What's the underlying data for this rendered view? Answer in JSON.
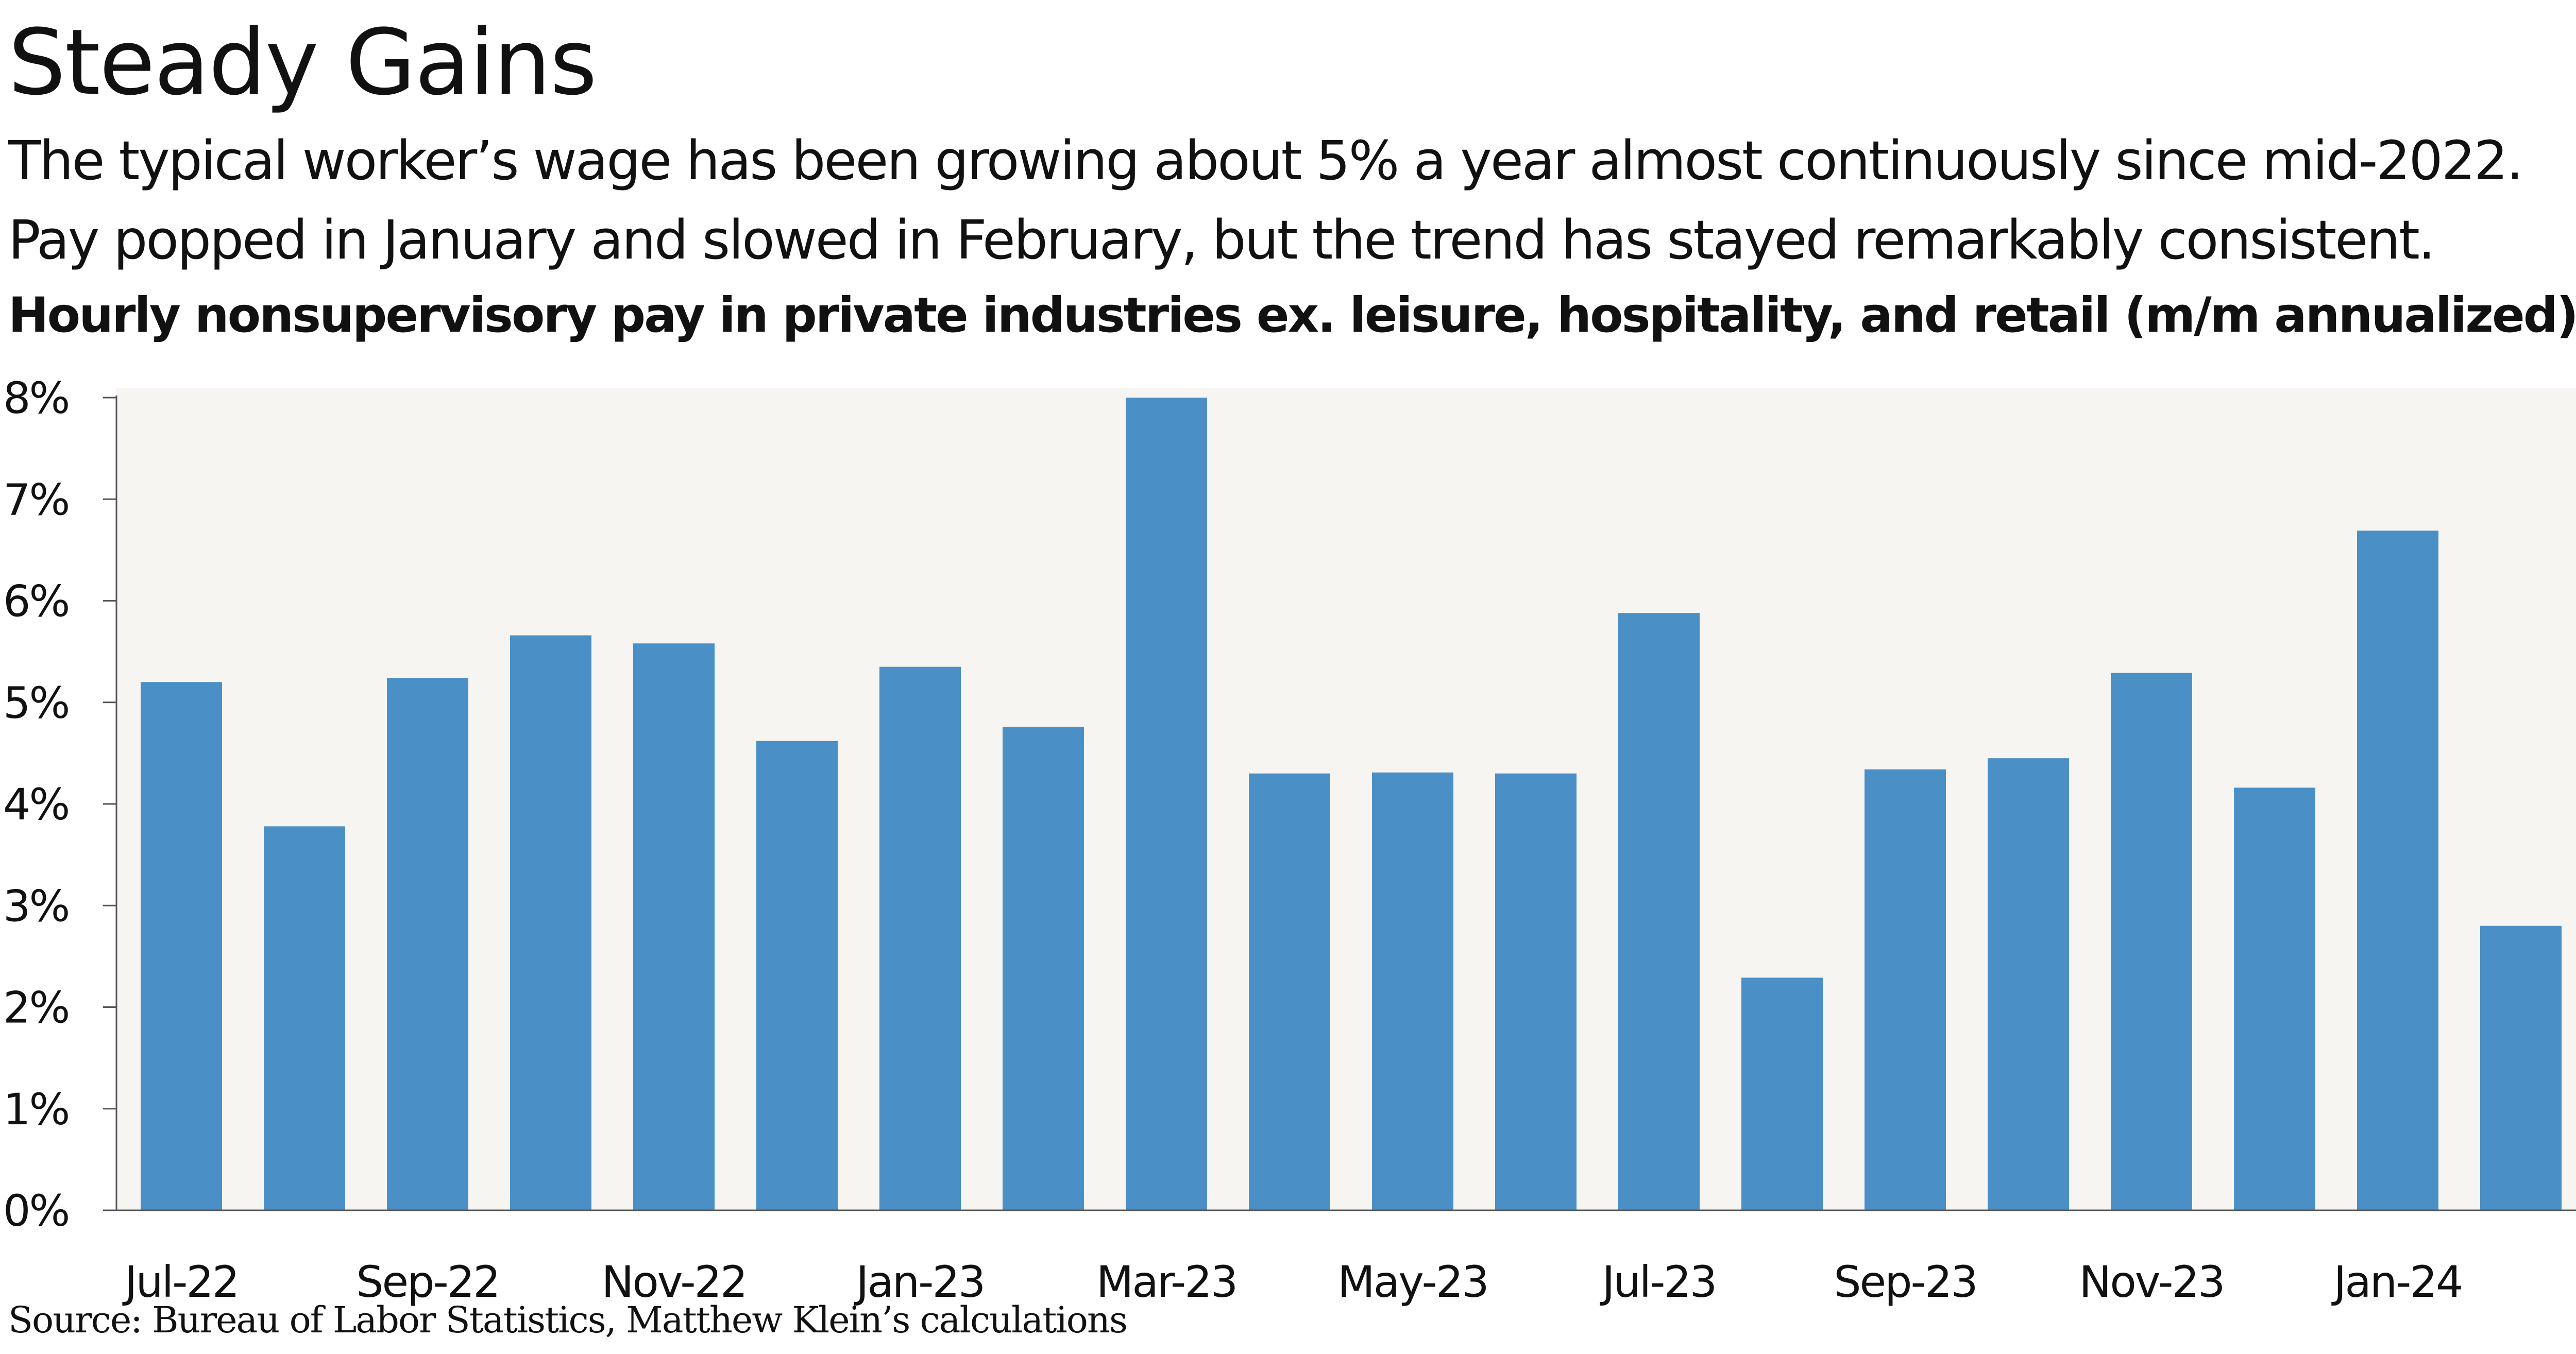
{
  "title": "Steady Gains",
  "subtitle_lines": [
    "The typical worker’s wage has been growing about 5% a year almost continuously since mid-2022.",
    "Pay popped in January and slowed in February, but the trend has stayed remarkably consistent."
  ],
  "source": "Source: Bureau of Labor Statistics, Matthew Klein’s calculations",
  "chart_data": {
    "type": "bar",
    "title": "Hourly nonsupervisory pay in private industries ex. leisure, hospitality, and retail (m/m annualized)",
    "xlabel": "",
    "ylabel": "",
    "ylim": [
      0,
      8
    ],
    "yticks": [
      0,
      1,
      2,
      3,
      4,
      5,
      6,
      7,
      8
    ],
    "ytick_labels": [
      "0%",
      "1%",
      "2%",
      "3%",
      "4%",
      "5%",
      "6%",
      "7%",
      "8%"
    ],
    "categories": [
      "Jul-22",
      "Aug-22",
      "Sep-22",
      "Oct-22",
      "Nov-22",
      "Dec-22",
      "Jan-23",
      "Feb-23",
      "Mar-23",
      "Apr-23",
      "May-23",
      "Jun-23",
      "Jul-23",
      "Aug-23",
      "Sep-23",
      "Oct-23",
      "Nov-23",
      "Dec-23",
      "Jan-24",
      "Feb-24"
    ],
    "xtick_labels": [
      "Jul-22",
      "",
      "Sep-22",
      "",
      "Nov-22",
      "",
      "Jan-23",
      "",
      "Mar-23",
      "",
      "May-23",
      "",
      "Jul-23",
      "",
      "Sep-23",
      "",
      "Nov-23",
      "",
      "Jan-24",
      ""
    ],
    "values": [
      5.2,
      3.78,
      5.24,
      5.66,
      5.58,
      4.62,
      5.35,
      4.76,
      8.0,
      4.3,
      4.31,
      4.3,
      5.88,
      2.29,
      4.34,
      4.45,
      5.29,
      4.16,
      6.69,
      2.8
    ],
    "bar_color": "#4a90c6",
    "plot_background": "#f6f5f2",
    "grid": false,
    "legend": "none"
  }
}
